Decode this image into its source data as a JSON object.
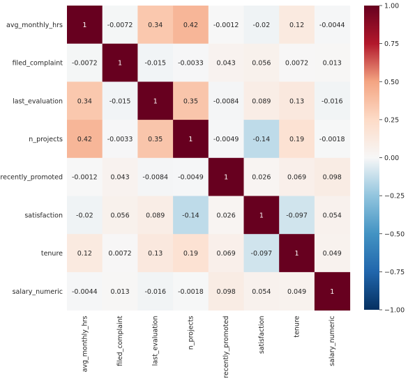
{
  "chart_data": {
    "type": "heatmap",
    "title": "",
    "xlabel": "",
    "ylabel": "",
    "rows": [
      "avg_monthly_hrs",
      "filed_complaint",
      "last_evaluation",
      "n_projects",
      "recently_promoted",
      "satisfaction",
      "tenure",
      "salary_numeric"
    ],
    "columns": [
      "avg_monthly_hrs",
      "filed_complaint",
      "last_evaluation",
      "n_projects",
      "recently_promoted",
      "satisfaction",
      "tenure",
      "salary_numeric"
    ],
    "values": [
      [
        1,
        -0.0072,
        0.34,
        0.42,
        -0.0012,
        -0.02,
        0.12,
        -0.0044
      ],
      [
        -0.0072,
        1,
        -0.015,
        -0.0033,
        0.043,
        0.056,
        0.0072,
        0.013
      ],
      [
        0.34,
        -0.015,
        1,
        0.35,
        -0.0084,
        0.089,
        0.13,
        -0.016
      ],
      [
        0.42,
        -0.0033,
        0.35,
        1,
        -0.0049,
        -0.14,
        0.19,
        -0.0018
      ],
      [
        -0.0012,
        0.043,
        -0.0084,
        -0.0049,
        1,
        0.026,
        0.069,
        0.098
      ],
      [
        -0.02,
        0.056,
        0.089,
        -0.14,
        0.026,
        1,
        -0.097,
        0.054
      ],
      [
        0.12,
        0.0072,
        0.13,
        0.19,
        0.069,
        -0.097,
        1,
        0.049
      ],
      [
        -0.0044,
        0.013,
        -0.016,
        -0.0018,
        0.098,
        0.054,
        0.049,
        1
      ]
    ],
    "value_labels": [
      [
        "1",
        "-0.0072",
        "0.34",
        "0.42",
        "-0.0012",
        "-0.02",
        "0.12",
        "-0.0044"
      ],
      [
        "-0.0072",
        "1",
        "-0.015",
        "-0.0033",
        "0.043",
        "0.056",
        "0.0072",
        "0.013"
      ],
      [
        "0.34",
        "-0.015",
        "1",
        "0.35",
        "-0.0084",
        "0.089",
        "0.13",
        "-0.016"
      ],
      [
        "0.42",
        "-0.0033",
        "0.35",
        "1",
        "-0.0049",
        "-0.14",
        "0.19",
        "-0.0018"
      ],
      [
        "-0.0012",
        "0.043",
        "-0.0084",
        "-0.0049",
        "1",
        "0.026",
        "0.069",
        "0.098"
      ],
      [
        "-0.02",
        "0.056",
        "0.089",
        "-0.14",
        "0.026",
        "1",
        "-0.097",
        "0.054"
      ],
      [
        "0.12",
        "0.0072",
        "0.13",
        "0.19",
        "0.069",
        "-0.097",
        "1",
        "0.049"
      ],
      [
        "-0.0044",
        "0.013",
        "-0.016",
        "-0.0018",
        "0.098",
        "0.054",
        "0.049",
        "1"
      ]
    ],
    "colormap": "RdBu_r",
    "vmin": -1,
    "vmax": 1,
    "colorbar_ticks": [
      "1.00",
      "0.75",
      "0.50",
      "0.25",
      "0.00",
      "−0.25",
      "−0.50",
      "−0.75",
      "−1.00"
    ],
    "colorbar_tick_values": [
      1,
      0.75,
      0.5,
      0.25,
      0,
      -0.25,
      -0.5,
      -0.75,
      -1
    ],
    "colorbar_stops": [
      [
        -1.0,
        "#053061"
      ],
      [
        -0.75,
        "#2166ac"
      ],
      [
        -0.5,
        "#4393c3"
      ],
      [
        -0.25,
        "#92c5de"
      ],
      [
        0.0,
        "#f7f7f7"
      ],
      [
        0.25,
        "#fddbc7"
      ],
      [
        0.5,
        "#f4a582"
      ],
      [
        0.75,
        "#b2182b"
      ],
      [
        1.0,
        "#67001f"
      ]
    ]
  }
}
